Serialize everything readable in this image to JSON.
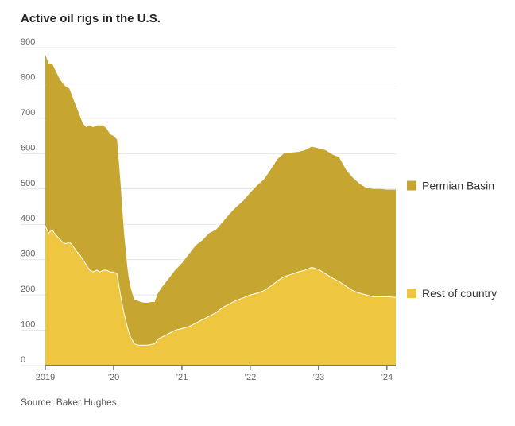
{
  "chart_data": {
    "type": "area",
    "stacked": true,
    "title": "Active oil rigs in the U.S.",
    "source": "Source: Baker Hughes",
    "ylim": [
      0,
      900
    ],
    "xlim": [
      2019.0,
      2024.13
    ],
    "y_ticks": [
      {
        "value": 0,
        "label": "0"
      },
      {
        "value": 100,
        "label": "100"
      },
      {
        "value": 200,
        "label": "200"
      },
      {
        "value": 300,
        "label": "300"
      },
      {
        "value": 400,
        "label": "400"
      },
      {
        "value": 500,
        "label": "500"
      },
      {
        "value": 600,
        "label": "600"
      },
      {
        "value": 700,
        "label": "700"
      },
      {
        "value": 800,
        "label": "800"
      },
      {
        "value": 900,
        "label": "900"
      }
    ],
    "x_ticks": [
      {
        "value": 2019,
        "label": "2019"
      },
      {
        "value": 2020,
        "label": "’20"
      },
      {
        "value": 2021,
        "label": "’21"
      },
      {
        "value": 2022,
        "label": "’22"
      },
      {
        "value": 2023,
        "label": "’23"
      },
      {
        "value": 2024,
        "label": "’24"
      }
    ],
    "grid": true,
    "legend_placement": "right",
    "x": [
      2019.0,
      2019.05,
      2019.1,
      2019.15,
      2019.2,
      2019.25,
      2019.3,
      2019.35,
      2019.4,
      2019.45,
      2019.5,
      2019.55,
      2019.6,
      2019.65,
      2019.7,
      2019.75,
      2019.8,
      2019.85,
      2019.9,
      2019.95,
      2020.0,
      2020.05,
      2020.1,
      2020.15,
      2020.2,
      2020.22,
      2020.25,
      2020.28,
      2020.3,
      2020.33,
      2020.36,
      2020.4,
      2020.45,
      2020.5,
      2020.55,
      2020.6,
      2020.65,
      2020.7,
      2020.8,
      2020.9,
      2021.0,
      2021.1,
      2021.2,
      2021.3,
      2021.4,
      2021.5,
      2021.6,
      2021.7,
      2021.8,
      2021.9,
      2022.0,
      2022.1,
      2022.2,
      2022.3,
      2022.4,
      2022.5,
      2022.6,
      2022.7,
      2022.8,
      2022.9,
      2023.0,
      2023.1,
      2023.2,
      2023.3,
      2023.4,
      2023.5,
      2023.6,
      2023.7,
      2023.8,
      2023.9,
      2024.0,
      2024.13
    ],
    "series": [
      {
        "name": "Rest of country",
        "color": "#eec63f",
        "values": [
          395,
          375,
          385,
          370,
          360,
          350,
          345,
          350,
          340,
          325,
          315,
          300,
          285,
          270,
          265,
          270,
          265,
          270,
          270,
          265,
          265,
          260,
          200,
          150,
          110,
          95,
          80,
          70,
          62,
          60,
          58,
          58,
          58,
          58,
          60,
          62,
          75,
          80,
          90,
          100,
          105,
          110,
          120,
          130,
          140,
          150,
          165,
          175,
          185,
          192,
          200,
          205,
          212,
          225,
          240,
          252,
          258,
          265,
          270,
          278,
          272,
          260,
          248,
          238,
          225,
          212,
          205,
          200,
          195,
          195,
          195,
          193
        ]
      },
      {
        "name": "Permian Basin",
        "color": "#c6a630",
        "values": [
          485,
          480,
          470,
          465,
          455,
          450,
          445,
          435,
          420,
          410,
          395,
          385,
          390,
          410,
          410,
          410,
          415,
          410,
          400,
          390,
          385,
          380,
          320,
          230,
          170,
          155,
          140,
          130,
          125,
          125,
          125,
          122,
          120,
          120,
          120,
          118,
          130,
          140,
          155,
          170,
          185,
          205,
          220,
          225,
          235,
          235,
          242,
          255,
          265,
          275,
          290,
          305,
          315,
          330,
          345,
          350,
          345,
          340,
          340,
          342,
          343,
          350,
          350,
          352,
          330,
          320,
          310,
          303,
          305,
          305,
          303,
          305
        ]
      }
    ]
  }
}
